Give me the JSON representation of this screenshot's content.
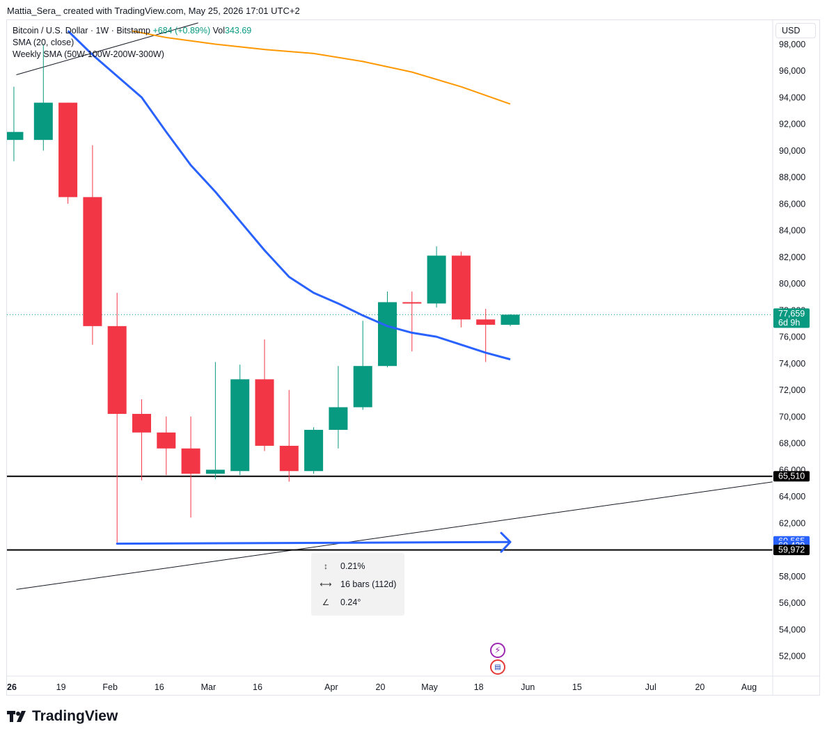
{
  "header": {
    "text": "Mattia_Sera_ created with TradingView.com, May 25, 2026 17:01 UTC+2"
  },
  "legend": {
    "symbol": "Bitcoin / U.S. Dollar · 1W · Bitstamp",
    "change": "+684 (+0.89%)",
    "vol_label": "Vol",
    "vol_value": "343.69",
    "sma": "SMA (20, close)",
    "weekly_sma": "Weekly SMA (50W-100W-200W-300W)"
  },
  "currency": "USD",
  "measure": {
    "percent": "0.21%",
    "bars": "16 bars (112d)",
    "angle": "0.24°"
  },
  "branding": {
    "logo_text": "TradingView"
  },
  "colors": {
    "up": "#089981",
    "down": "#f23645",
    "sma20": "#2962ff",
    "weekly_sma": "#ff9800",
    "text": "#131722"
  },
  "chart_data": {
    "type": "candlestick",
    "y_axis": {
      "min": 50500,
      "max": 99000,
      "ticks": [
        52000,
        54000,
        56000,
        58000,
        60000,
        62000,
        64000,
        66000,
        68000,
        70000,
        72000,
        74000,
        76000,
        78000,
        80000,
        82000,
        84000,
        86000,
        88000,
        90000,
        92000,
        94000,
        96000,
        98000
      ]
    },
    "x_labels": [
      {
        "label": "26",
        "bold": true,
        "slot": 0
      },
      {
        "label": "19",
        "slot": 2
      },
      {
        "label": "Feb",
        "slot": 4
      },
      {
        "label": "16",
        "slot": 6
      },
      {
        "label": "Mar",
        "slot": 8
      },
      {
        "label": "16",
        "slot": 10
      },
      {
        "label": "Apr",
        "slot": 13
      },
      {
        "label": "20",
        "slot": 15
      },
      {
        "label": "May",
        "slot": 17
      },
      {
        "label": "18",
        "slot": 19
      },
      {
        "label": "Jun",
        "slot": 21
      },
      {
        "label": "15",
        "slot": 23
      },
      {
        "label": "Jul",
        "slot": 26
      },
      {
        "label": "20",
        "slot": 28
      },
      {
        "label": "Aug",
        "slot": 30
      }
    ],
    "candles": [
      {
        "slot": -0.2,
        "o": 90800,
        "h": 94800,
        "l": 89200,
        "c": 91400
      },
      {
        "slot": 1,
        "o": 90800,
        "h": 98000,
        "l": 90000,
        "c": 93600
      },
      {
        "slot": 2,
        "o": 93600,
        "h": 93600,
        "l": 86000,
        "c": 86500
      },
      {
        "slot": 3,
        "o": 86500,
        "h": 90400,
        "l": 75400,
        "c": 76800
      },
      {
        "slot": 4,
        "o": 76800,
        "h": 79300,
        "l": 60500,
        "c": 70200
      },
      {
        "slot": 5,
        "o": 70200,
        "h": 71300,
        "l": 65200,
        "c": 68800
      },
      {
        "slot": 6,
        "o": 68800,
        "h": 70000,
        "l": 65600,
        "c": 67600
      },
      {
        "slot": 7,
        "o": 67600,
        "h": 70000,
        "l": 62400,
        "c": 65700
      },
      {
        "slot": 8,
        "o": 65700,
        "h": 74100,
        "l": 65300,
        "c": 66000
      },
      {
        "slot": 9,
        "o": 65900,
        "h": 73900,
        "l": 65600,
        "c": 72800
      },
      {
        "slot": 10,
        "o": 72800,
        "h": 75800,
        "l": 67400,
        "c": 67800
      },
      {
        "slot": 11,
        "o": 67800,
        "h": 72000,
        "l": 65100,
        "c": 65900
      },
      {
        "slot": 12,
        "o": 65900,
        "h": 69200,
        "l": 65700,
        "c": 69000
      },
      {
        "slot": 13,
        "o": 69000,
        "h": 73800,
        "l": 67600,
        "c": 70700
      },
      {
        "slot": 14,
        "o": 70700,
        "h": 77200,
        "l": 70500,
        "c": 73800
      },
      {
        "slot": 15,
        "o": 73800,
        "h": 79400,
        "l": 73700,
        "c": 78600
      },
      {
        "slot": 16,
        "o": 78600,
        "h": 79400,
        "l": 74900,
        "c": 78500
      },
      {
        "slot": 17,
        "o": 78500,
        "h": 82800,
        "l": 78200,
        "c": 82100
      },
      {
        "slot": 18,
        "o": 82100,
        "h": 82400,
        "l": 76700,
        "c": 77300
      },
      {
        "slot": 19,
        "o": 77300,
        "h": 78100,
        "l": 74100,
        "c": 76900
      },
      {
        "slot": 20,
        "o": 76900,
        "h": 77700,
        "l": 76800,
        "c": 77659
      }
    ],
    "sma20": [
      {
        "slot": 2,
        "v": 99000
      },
      {
        "slot": 3,
        "v": 97200
      },
      {
        "slot": 4,
        "v": 95600
      },
      {
        "slot": 5,
        "v": 94000
      },
      {
        "slot": 6,
        "v": 91400
      },
      {
        "slot": 7,
        "v": 88900
      },
      {
        "slot": 8,
        "v": 86900
      },
      {
        "slot": 9,
        "v": 84700
      },
      {
        "slot": 10,
        "v": 82500
      },
      {
        "slot": 11,
        "v": 80500
      },
      {
        "slot": 12,
        "v": 79300
      },
      {
        "slot": 13,
        "v": 78500
      },
      {
        "slot": 14,
        "v": 77600
      },
      {
        "slot": 15,
        "v": 76800
      },
      {
        "slot": 16,
        "v": 76300
      },
      {
        "slot": 17,
        "v": 76000
      },
      {
        "slot": 18,
        "v": 75400
      },
      {
        "slot": 19,
        "v": 74800
      },
      {
        "slot": 20,
        "v": 74300
      }
    ],
    "weekly_sma": [
      {
        "slot": 4.6,
        "v": 99000
      },
      {
        "slot": 6,
        "v": 98500
      },
      {
        "slot": 8,
        "v": 98000
      },
      {
        "slot": 10,
        "v": 97600
      },
      {
        "slot": 12,
        "v": 97300
      },
      {
        "slot": 14,
        "v": 96700
      },
      {
        "slot": 16,
        "v": 95900
      },
      {
        "slot": 18,
        "v": 94800
      },
      {
        "slot": 20,
        "v": 93500
      }
    ],
    "trendlines": [
      {
        "from": {
          "slot": -0.1,
          "v": 95700
        },
        "to": {
          "slot": 7.3,
          "v": 99600
        }
      },
      {
        "from": {
          "slot": -0.1,
          "v": 57000
        },
        "to": {
          "slot": 31.1,
          "v": 65200
        }
      }
    ],
    "horizontal_levels": [
      65510,
      59972
    ],
    "current_price": 77659,
    "arrow": {
      "from": {
        "slot": 4.0,
        "v": 60439
      },
      "to": {
        "slot": 20.0,
        "v": 60565
      }
    },
    "price_tags": [
      {
        "value": 77659,
        "text": "77,659",
        "sub": "6d 9h",
        "bg": "#089981",
        "fg": "#ffffff"
      },
      {
        "value": 65510,
        "text": "65,510",
        "bg": "#000000",
        "fg": "#ffffff"
      },
      {
        "value": 60565,
        "text": "60,565",
        "bg": "#2962ff",
        "fg": "#ffffff"
      },
      {
        "value": 60439,
        "text": "60,439",
        "bg": "#2962ff",
        "fg": "#ffffff"
      },
      {
        "value": 59972,
        "text": "59,972",
        "bg": "#000000",
        "fg": "#ffffff"
      }
    ]
  }
}
